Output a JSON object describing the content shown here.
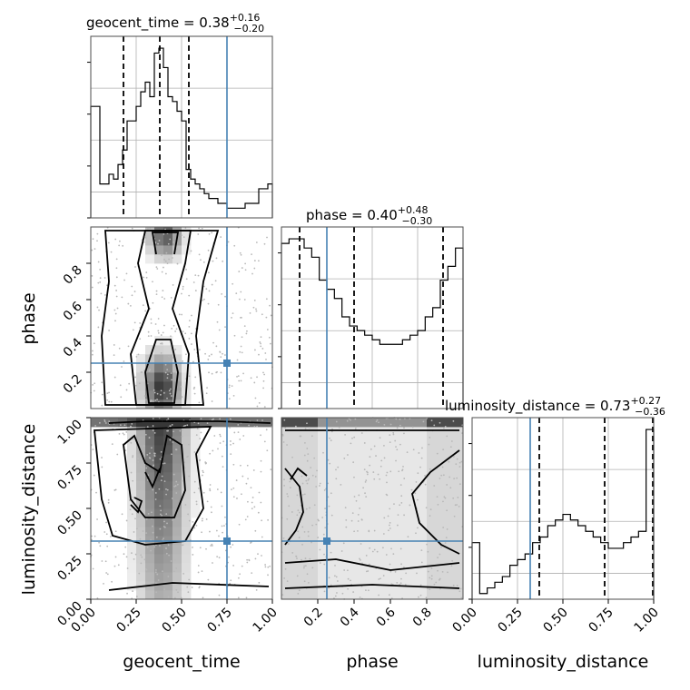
{
  "chart_data": {
    "type": "corner",
    "parameters": [
      "geocent_time",
      "phase",
      "luminosity_distance"
    ],
    "truth_color": "#4682b4",
    "truths": {
      "geocent_time": 0.75,
      "phase": 0.25,
      "luminosity_distance": 0.32
    },
    "titles": [
      {
        "param": "geocent_time",
        "prefix": "geocent_time = 0.38",
        "plus": "+0.16",
        "minus": "−0.20"
      },
      {
        "param": "phase",
        "prefix": "phase = 0.40",
        "plus": "+0.48",
        "minus": "−0.30"
      },
      {
        "param": "luminosity_distance",
        "prefix": "luminosity_distance = 0.73",
        "plus": "+0.27",
        "minus": "−0.36"
      }
    ],
    "histograms": [
      {
        "param": "geocent_time",
        "range": [
          0,
          1
        ],
        "quantiles": [
          0.18,
          0.38,
          0.54
        ],
        "values": [
          23,
          23,
          7,
          7,
          9,
          8,
          11,
          14,
          20,
          20,
          23,
          26,
          28,
          25,
          34,
          35,
          31,
          25,
          24,
          22,
          20,
          10,
          8,
          7,
          6,
          5,
          4,
          4,
          3,
          3,
          2,
          2,
          2,
          2,
          3,
          3,
          3,
          6,
          6,
          7
        ]
      },
      {
        "param": "phase",
        "range": [
          0,
          1
        ],
        "quantiles": [
          0.1,
          0.4,
          0.89
        ],
        "values": [
          36,
          37,
          37,
          35,
          33,
          28,
          26,
          24,
          20,
          18,
          17,
          16,
          15,
          14,
          14,
          14,
          15,
          16,
          17,
          20,
          22,
          28,
          31,
          35
        ]
      },
      {
        "param": "luminosity_distance",
        "range": [
          0,
          1
        ],
        "quantiles": [
          0.37,
          0.73,
          0.995
        ],
        "values": [
          10,
          1,
          2,
          3,
          4,
          6,
          7,
          8,
          10,
          11,
          13,
          14,
          15,
          14,
          13,
          12,
          11,
          10,
          9,
          9,
          10,
          11,
          12,
          30
        ]
      }
    ],
    "axis_ticks": {
      "geocent_time": [
        "0.00",
        "0.25",
        "0.50",
        "0.75",
        "1.00"
      ],
      "phase_x": [
        "0.2",
        "0.4",
        "0.6",
        "0.8"
      ],
      "phase_y": [
        "0.2",
        "0.4",
        "0.6",
        "0.8"
      ],
      "luminosity_distance": [
        "0.00",
        "0.25",
        "0.50",
        "0.75",
        "1.00"
      ]
    },
    "axis_labels": {
      "x": [
        "geocent_time",
        "phase",
        "luminosity_distance"
      ],
      "y": [
        "phase",
        "luminosity_distance"
      ]
    },
    "grid": true
  }
}
